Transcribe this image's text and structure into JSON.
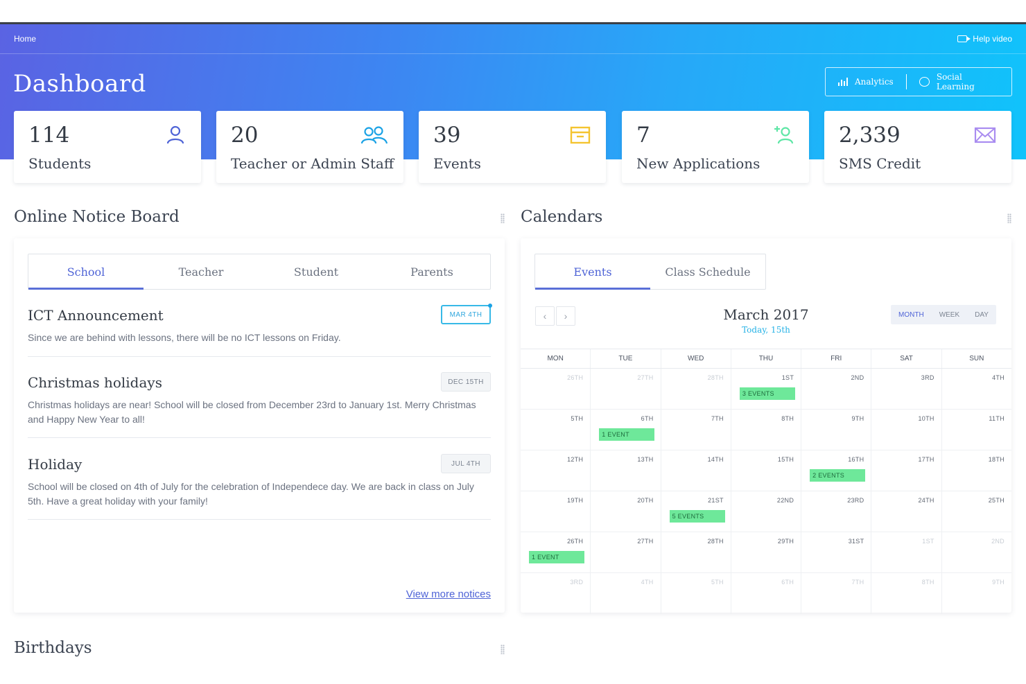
{
  "header": {
    "breadcrumb": "Home",
    "help_label": "Help video",
    "title": "Dashboard",
    "analytics_label": "Analytics",
    "social_label": "Social Learning"
  },
  "stats": [
    {
      "value": "114",
      "label": "Students",
      "icon": "user-icon",
      "color": "#4e63d6"
    },
    {
      "value": "20",
      "label": "Teacher or Admin Staff",
      "icon": "users-icon",
      "color": "#1aa2e5"
    },
    {
      "value": "39",
      "label": "Events",
      "icon": "calendar-box-icon",
      "color": "#f4c430"
    },
    {
      "value": "7",
      "label": "New Applications",
      "icon": "add-user-icon",
      "color": "#5ee6a6"
    },
    {
      "value": "2,339",
      "label": "SMS Credit",
      "icon": "mail-icon",
      "color": "#a98cf0"
    }
  ],
  "notice_board": {
    "title": "Online Notice Board",
    "tabs": [
      "School",
      "Teacher",
      "Student",
      "Parents"
    ],
    "active_tab": "School",
    "notices": [
      {
        "title": "ICT Announcement",
        "date": "MAR 4TH",
        "body": "Since we are behind with lessons, there will be no ICT lessons on Friday."
      },
      {
        "title": "Christmas holidays",
        "date": "DEC 15TH",
        "body": "Christmas holidays are near! School will be closed from December 23rd to January 1st. Merry Christmas and Happy New Year to all!"
      },
      {
        "title": "Holiday",
        "date": "JUL 4TH",
        "body": "School will be closed on 4th of July for the celebration of Independece day. We are back in class on July 5th. Have a great holiday with your family!"
      }
    ],
    "view_more": "View more notices"
  },
  "calendar": {
    "title": "Calendars",
    "tabs": [
      "Events",
      "Class Schedule"
    ],
    "month_title": "March 2017",
    "today": "Today, 15th",
    "views": [
      "MONTH",
      "WEEK",
      "DAY"
    ],
    "weekdays": [
      "MON",
      "TUE",
      "WED",
      "THU",
      "FRI",
      "SAT",
      "SUN"
    ],
    "weeks": [
      [
        {
          "d": "26TH",
          "m": true
        },
        {
          "d": "27TH",
          "m": true
        },
        {
          "d": "28TH",
          "m": true
        },
        {
          "d": "1ST",
          "e": "3 EVENTS"
        },
        {
          "d": "2ND"
        },
        {
          "d": "3RD"
        },
        {
          "d": "4TH"
        }
      ],
      [
        {
          "d": "5TH"
        },
        {
          "d": "6TH",
          "e": "1 EVENT"
        },
        {
          "d": "7TH"
        },
        {
          "d": "8TH"
        },
        {
          "d": "9TH"
        },
        {
          "d": "10TH"
        },
        {
          "d": "11TH"
        }
      ],
      [
        {
          "d": "12TH"
        },
        {
          "d": "13TH"
        },
        {
          "d": "14TH"
        },
        {
          "d": "15TH"
        },
        {
          "d": "16TH",
          "e": "2 EVENTS"
        },
        {
          "d": "17TH"
        },
        {
          "d": "18TH"
        }
      ],
      [
        {
          "d": "19TH"
        },
        {
          "d": "20TH"
        },
        {
          "d": "21ST",
          "e": "5 EVENTS"
        },
        {
          "d": "22ND"
        },
        {
          "d": "23RD"
        },
        {
          "d": "24TH"
        },
        {
          "d": "25TH"
        }
      ],
      [
        {
          "d": "26TH",
          "e": "1 EVENT"
        },
        {
          "d": "27TH"
        },
        {
          "d": "28TH"
        },
        {
          "d": "29TH"
        },
        {
          "d": "31ST"
        },
        {
          "d": "1ST",
          "m": true
        },
        {
          "d": "2ND",
          "m": true
        }
      ],
      [
        {
          "d": "3RD",
          "m": true
        },
        {
          "d": "4TH",
          "m": true
        },
        {
          "d": "5TH",
          "m": true
        },
        {
          "d": "6TH",
          "m": true
        },
        {
          "d": "7TH",
          "m": true
        },
        {
          "d": "8TH",
          "m": true
        },
        {
          "d": "9TH",
          "m": true
        }
      ]
    ]
  },
  "birthdays": {
    "title": "Birthdays"
  }
}
